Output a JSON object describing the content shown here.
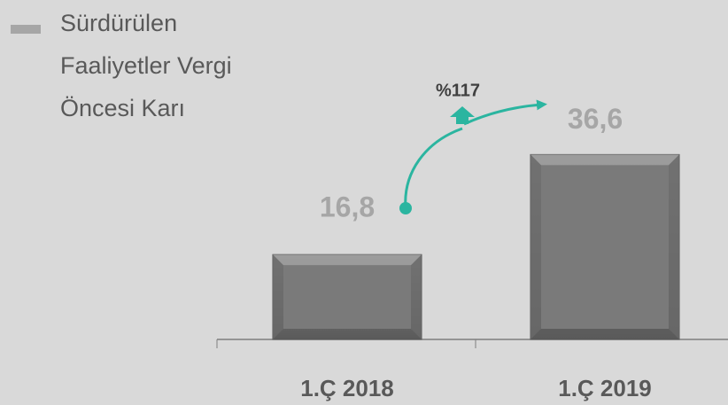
{
  "chart_data": {
    "type": "bar",
    "categories": [
      "1.Ç 2018",
      "1.Ç 2019"
    ],
    "series": [
      {
        "name": "Sürdürülen Faaliyetler Vergi Öncesi Karı",
        "color": "#7f7f7f",
        "values": [
          16.8,
          36.6
        ],
        "value_labels": [
          "16,8",
          "36,6"
        ]
      }
    ],
    "annotations": [
      "%117"
    ],
    "legend": "top-left"
  }
}
